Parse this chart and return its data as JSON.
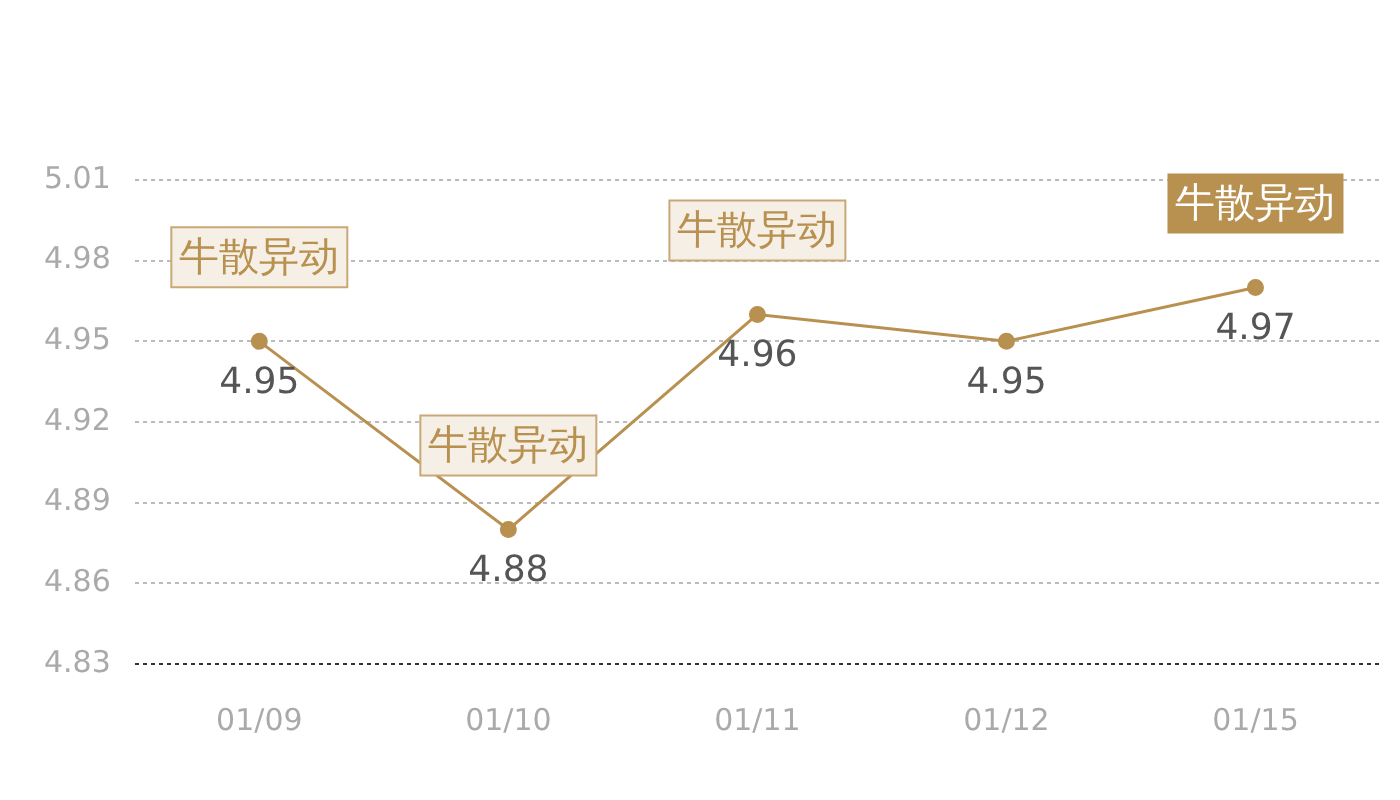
{
  "chart_data": {
    "type": "line",
    "categories": [
      "01/09",
      "01/10",
      "01/11",
      "01/12",
      "01/15"
    ],
    "series": [
      {
        "color": "#b8904f",
        "values": [
          4.95,
          4.88,
          4.96,
          4.95,
          4.97
        ]
      }
    ],
    "ylim": [
      4.83,
      5.01
    ],
    "yticks": [
      4.83,
      4.86,
      4.89,
      4.92,
      4.95,
      4.98,
      5.01
    ],
    "grid": "y",
    "marker": "circle",
    "line_style": "solid",
    "data_labels": true,
    "legend": false,
    "annotations": [
      {
        "text": "牛散异动",
        "x": "01/09",
        "y": 4.95
      },
      {
        "text": "牛散异动",
        "x": "01/10",
        "y": 4.88
      },
      {
        "text": "牛散异动",
        "x": "01/11",
        "y": 4.96
      },
      {
        "text": "牛散异动",
        "x": "01/15",
        "y": 4.97
      }
    ]
  }
}
